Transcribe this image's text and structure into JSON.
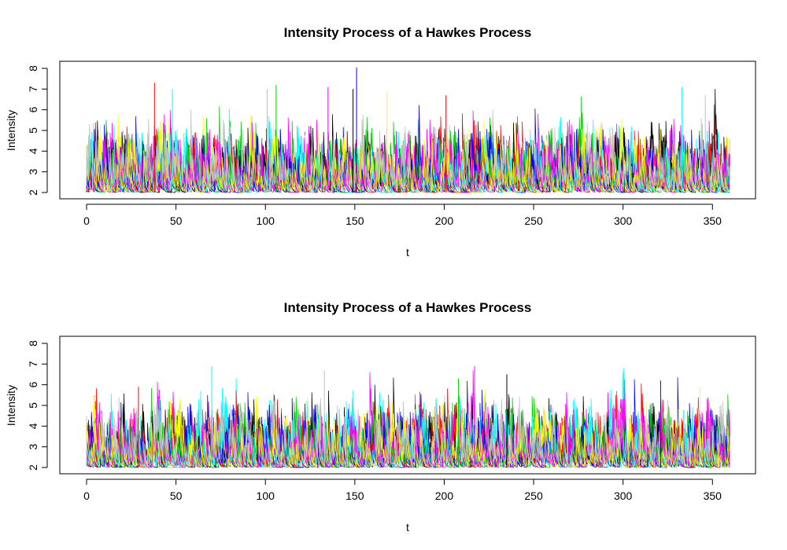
{
  "chart_data": [
    {
      "type": "line",
      "title": "Intensity Process of a Hawkes Process",
      "xlabel": "t",
      "ylabel": "Intensity",
      "xlim": [
        0,
        360
      ],
      "ylim": [
        2,
        8
      ],
      "xticks": [
        "0",
        "50",
        "100",
        "150",
        "200",
        "250",
        "300",
        "350"
      ],
      "yticks": [
        "2",
        "3",
        "4",
        "5",
        "6",
        "7",
        "8"
      ],
      "grid": false,
      "legend": "none",
      "baseline_intensity": 2,
      "series_colors": [
        "#000000",
        "#ff0000",
        "#00cd00",
        "#0000ff",
        "#00ffff",
        "#ff00ff",
        "#ffff00",
        "#bebebe"
      ],
      "peaks": [
        {
          "t": 38,
          "y": 7.3
        },
        {
          "t": 48,
          "y": 7.0
        },
        {
          "t": 101,
          "y": 7.0
        },
        {
          "t": 106,
          "y": 7.2
        },
        {
          "t": 135,
          "y": 7.1
        },
        {
          "t": 149,
          "y": 7.0
        },
        {
          "t": 151,
          "y": 8.05
        },
        {
          "t": 168,
          "y": 6.9
        },
        {
          "t": 201,
          "y": 6.7
        },
        {
          "t": 333,
          "y": 7.1
        },
        {
          "t": 346,
          "y": 6.7
        }
      ]
    },
    {
      "type": "line",
      "title": "Intensity Process of a Hawkes Process",
      "xlabel": "t",
      "ylabel": "Intensity",
      "xlim": [
        0,
        360
      ],
      "ylim": [
        2,
        8
      ],
      "xticks": [
        "0",
        "50",
        "100",
        "150",
        "200",
        "250",
        "300",
        "350"
      ],
      "yticks": [
        "2",
        "3",
        "4",
        "5",
        "6",
        "7",
        "8"
      ],
      "grid": false,
      "legend": "none",
      "baseline_intensity": 2,
      "series_colors": [
        "#000000",
        "#ff0000",
        "#00cd00",
        "#0000ff",
        "#00ffff",
        "#ff00ff",
        "#ffff00",
        "#bebebe"
      ],
      "peaks": [
        {
          "t": 29,
          "y": 5.9
        },
        {
          "t": 70,
          "y": 6.9
        },
        {
          "t": 133,
          "y": 6.7
        },
        {
          "t": 208,
          "y": 6.3
        },
        {
          "t": 217,
          "y": 6.9
        },
        {
          "t": 235,
          "y": 6.5
        },
        {
          "t": 321,
          "y": 6.2
        },
        {
          "t": 343,
          "y": 5.9
        }
      ]
    }
  ]
}
